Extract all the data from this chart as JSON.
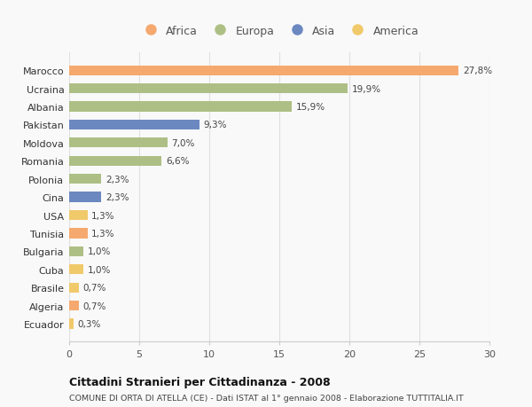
{
  "countries": [
    "Marocco",
    "Ucraina",
    "Albania",
    "Pakistan",
    "Moldova",
    "Romania",
    "Polonia",
    "Cina",
    "USA",
    "Tunisia",
    "Bulgaria",
    "Cuba",
    "Brasile",
    "Algeria",
    "Ecuador"
  ],
  "values": [
    27.8,
    19.9,
    15.9,
    9.3,
    7.0,
    6.6,
    2.3,
    2.3,
    1.3,
    1.3,
    1.0,
    1.0,
    0.7,
    0.7,
    0.3
  ],
  "labels": [
    "27,8%",
    "19,9%",
    "15,9%",
    "9,3%",
    "7,0%",
    "6,6%",
    "2,3%",
    "2,3%",
    "1,3%",
    "1,3%",
    "1,0%",
    "1,0%",
    "0,7%",
    "0,7%",
    "0,3%"
  ],
  "colors": [
    "#F5A96E",
    "#AEBF85",
    "#AEBF85",
    "#6B88C0",
    "#AEBF85",
    "#AEBF85",
    "#AEBF85",
    "#6B88C0",
    "#F0C96A",
    "#F5A96E",
    "#AEBF85",
    "#F0C96A",
    "#F0C96A",
    "#F5A96E",
    "#F0C96A"
  ],
  "legend_labels": [
    "Africa",
    "Europa",
    "Asia",
    "America"
  ],
  "legend_colors": [
    "#F5A96E",
    "#AEBF85",
    "#6B88C0",
    "#F0C96A"
  ],
  "xlim": [
    0,
    30
  ],
  "xticks": [
    0,
    5,
    10,
    15,
    20,
    25,
    30
  ],
  "title": "Cittadini Stranieri per Cittadinanza - 2008",
  "subtitle": "COMUNE DI ORTA DI ATELLA (CE) - Dati ISTAT al 1° gennaio 2008 - Elaborazione TUTTITALIA.IT",
  "background_color": "#f9f9f9",
  "grid_color": "#e0e0e0"
}
